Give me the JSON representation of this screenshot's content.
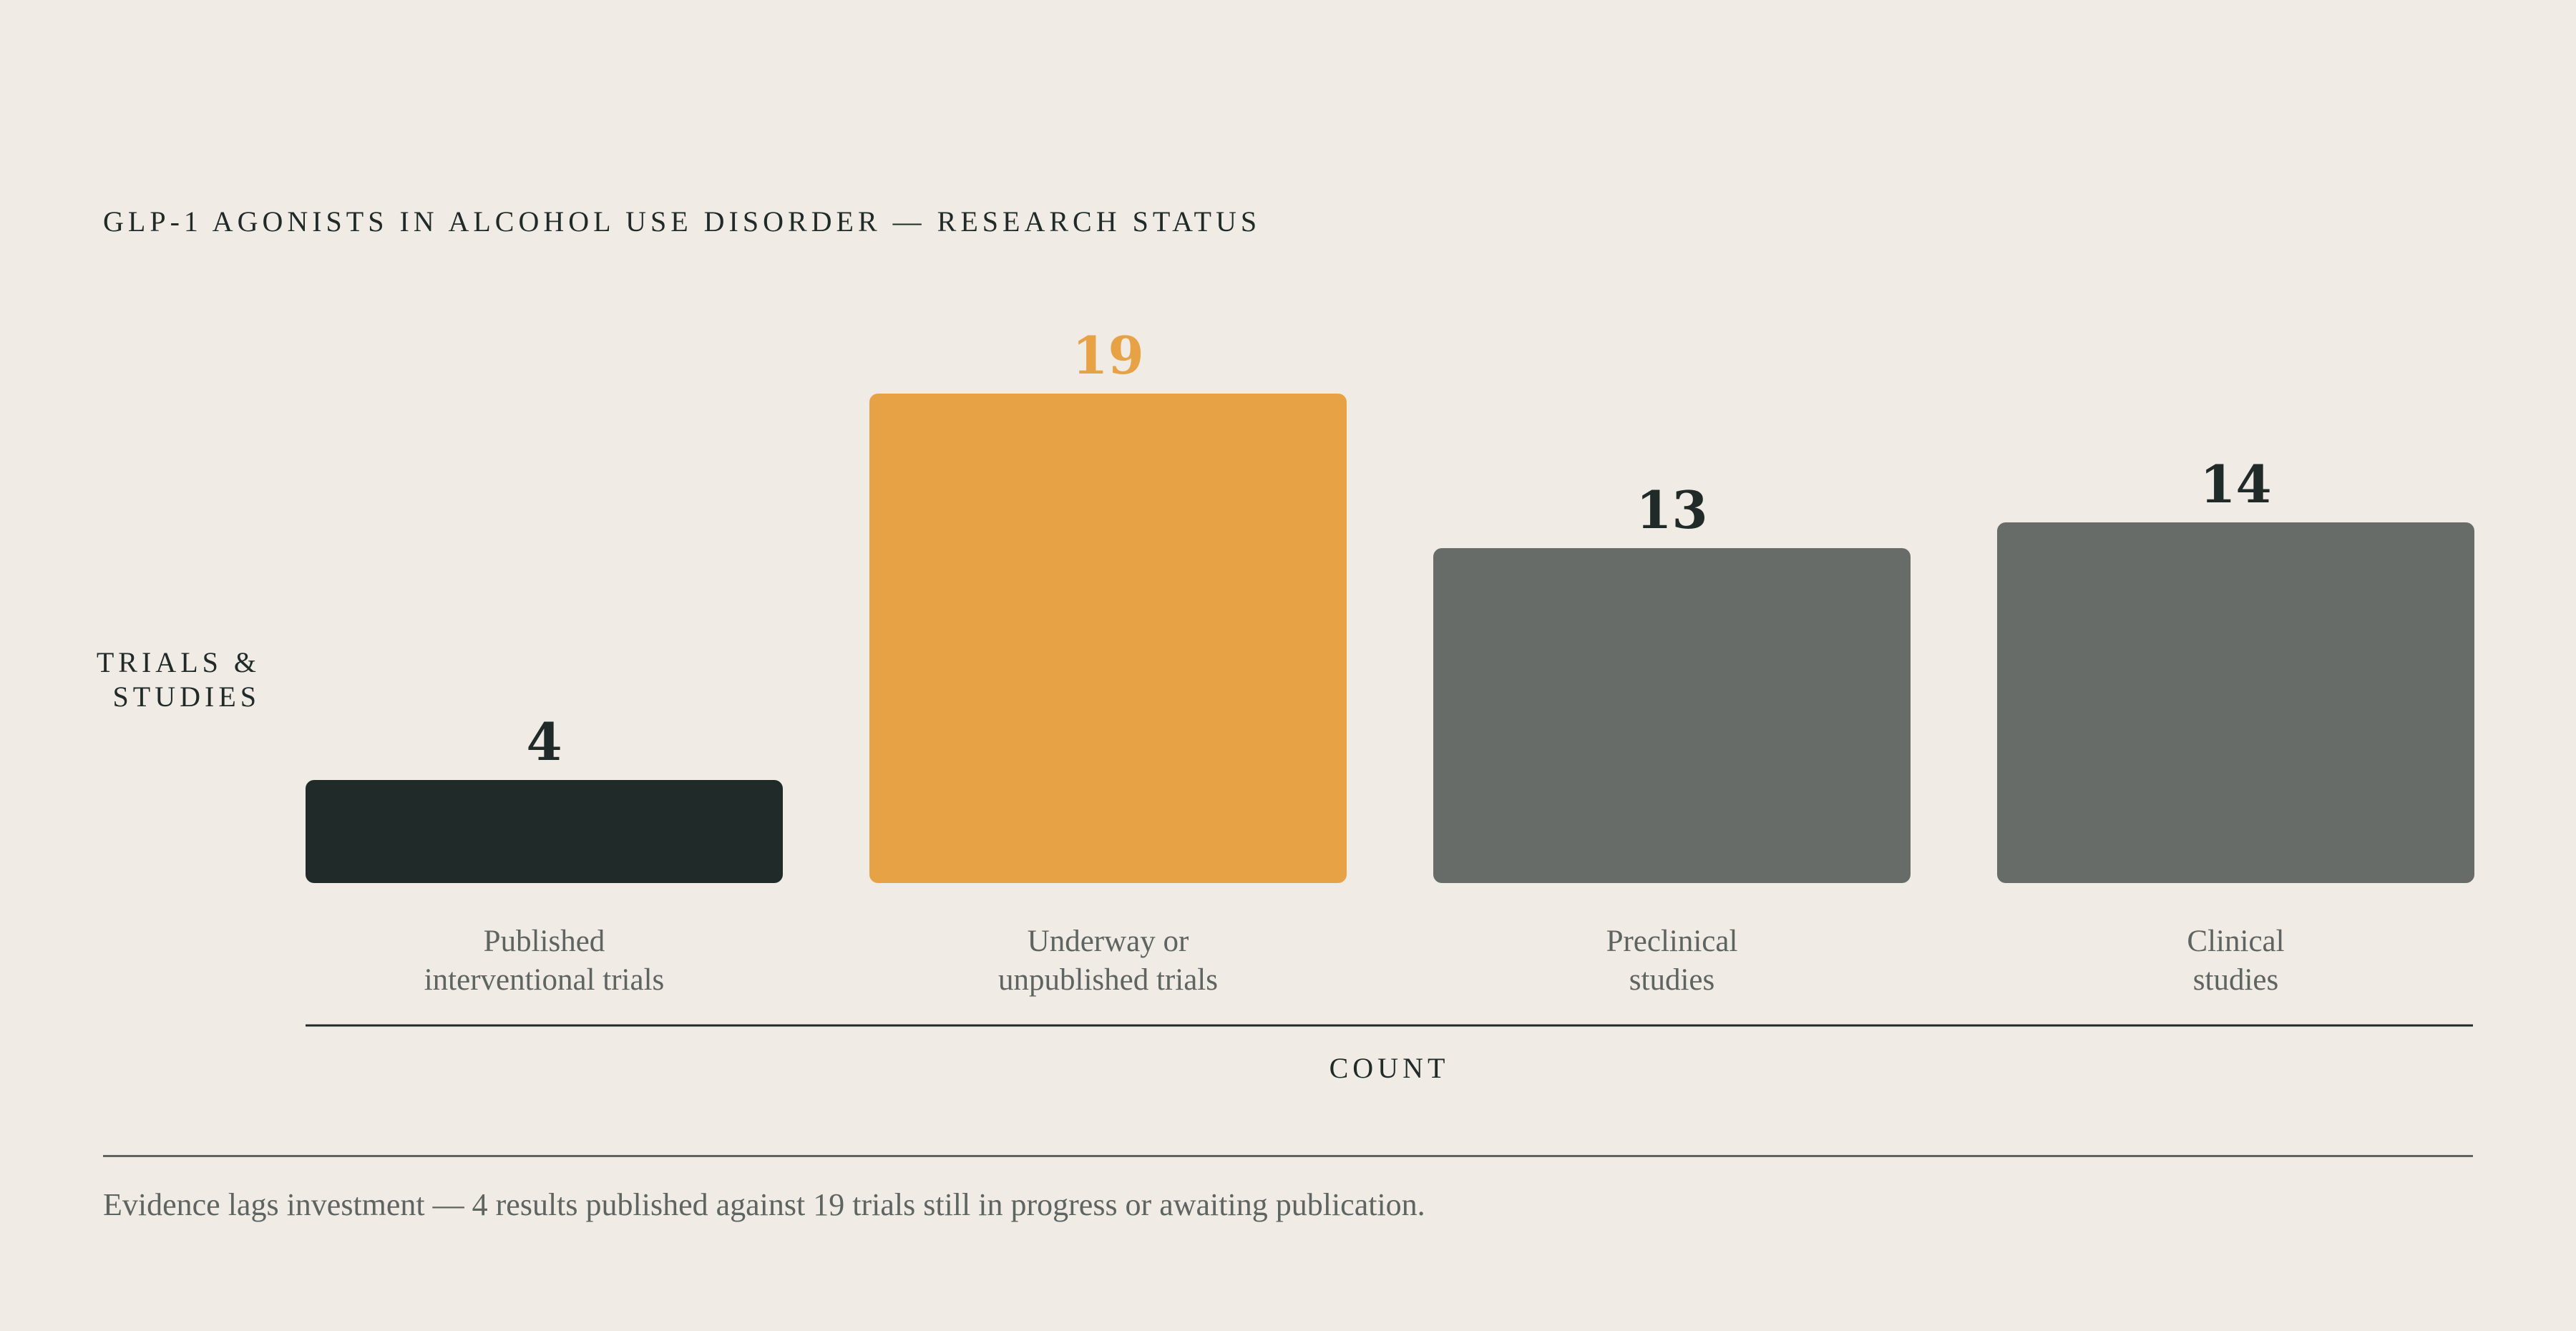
{
  "chart_data": {
    "type": "bar",
    "title": "GLP-1 AGONISTS IN ALCOHOL USE DISORDER — RESEARCH STATUS",
    "ylabel_lines": [
      "TRIALS &",
      "STUDIES"
    ],
    "xlabel": "COUNT",
    "categories": [
      [
        "Published",
        "interventional trials"
      ],
      [
        "Underway or",
        "unpublished trials"
      ],
      [
        "Preclinical",
        "studies"
      ],
      [
        "Clinical",
        "studies"
      ]
    ],
    "values": [
      4,
      19,
      13,
      14
    ],
    "bar_colors": [
      "#1f2a29",
      "#e8a246",
      "#676c68",
      "#676c68"
    ],
    "value_label_colors": [
      "#1f2a29",
      "#e8a246",
      "#1f2a29",
      "#1f2a29"
    ],
    "ylim": [
      0,
      19
    ],
    "grid": false,
    "legend": "none"
  },
  "footnote": "Evidence lags investment — 4 results published against 19 trials still in progress or awaiting publication."
}
